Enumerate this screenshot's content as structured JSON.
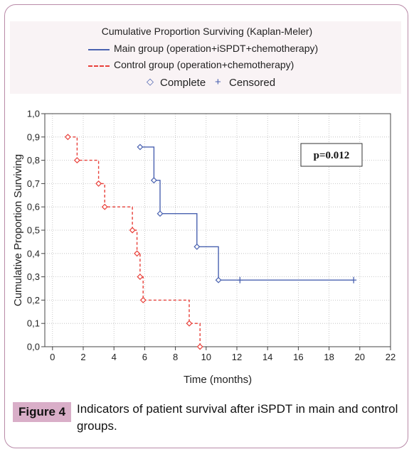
{
  "legend": {
    "title": "Cumulative Proportion Surviving (Kaplan-Meler)",
    "main_label": "Main group (operation+iSPDT+chemotherapy)",
    "control_label": "Control group (operation+chemotherapy)",
    "complete_label": "Complete",
    "censored_label": "Censored",
    "complete_symbol": "◇",
    "censored_symbol": "+"
  },
  "annotation": {
    "p_value": "p=0.012"
  },
  "caption": {
    "label": "Figure 4",
    "text": "Indicators of patient survival after iSPDT in main and control groups."
  },
  "colors": {
    "main": "#4a62b0",
    "control": "#e8403a",
    "grid": "#bbbbbb",
    "caption_label_bg": "#d9aec8",
    "frame": "#b98aa8"
  },
  "chart_data": {
    "type": "line",
    "title": "Cumulative Proportion Surviving (Kaplan-Meler)",
    "xlabel": "Time (months)",
    "ylabel": "Cumulative Proportion Surviving",
    "xlim": [
      -0.5,
      22
    ],
    "ylim": [
      0,
      1
    ],
    "xticks": [
      0,
      2,
      4,
      6,
      8,
      10,
      12,
      14,
      16,
      18,
      20,
      22
    ],
    "yticks": [
      0,
      0.1,
      0.2,
      0.3,
      0.4,
      0.5,
      0.6,
      0.7,
      0.8,
      0.9,
      1.0
    ],
    "xtick_labels": [
      "0",
      "2",
      "4",
      "6",
      "8",
      "10",
      "12",
      "14",
      "16",
      "18",
      "20",
      "22"
    ],
    "ytick_labels": [
      "0,0",
      "0,1",
      "0,2",
      "0,3",
      "0,4",
      "0,5",
      "0,6",
      "0,7",
      "0,8",
      "0,9",
      "1,0"
    ],
    "grid": true,
    "series": [
      {
        "name": "Main group (operation+iSPDT+chemotherapy)",
        "style": "solid",
        "color": "#4a62b0",
        "steps": [
          [
            5.7,
            0.857
          ],
          [
            6.6,
            0.857
          ],
          [
            6.6,
            0.714
          ],
          [
            7.0,
            0.714
          ],
          [
            7.0,
            0.571
          ],
          [
            9.4,
            0.571
          ],
          [
            9.4,
            0.429
          ],
          [
            10.8,
            0.429
          ],
          [
            10.8,
            0.286
          ],
          [
            19.6,
            0.286
          ]
        ],
        "complete": [
          [
            5.7,
            0.857
          ],
          [
            6.6,
            0.714
          ],
          [
            7.0,
            0.571
          ],
          [
            9.4,
            0.429
          ],
          [
            10.8,
            0.286
          ]
        ],
        "censored": [
          [
            12.2,
            0.286
          ],
          [
            19.6,
            0.286
          ]
        ]
      },
      {
        "name": "Control group (operation+chemotherapy)",
        "style": "dashed",
        "color": "#e8403a",
        "steps": [
          [
            1.0,
            0.9
          ],
          [
            1.6,
            0.9
          ],
          [
            1.6,
            0.8
          ],
          [
            3.0,
            0.8
          ],
          [
            3.0,
            0.7
          ],
          [
            3.4,
            0.7
          ],
          [
            3.4,
            0.6
          ],
          [
            5.2,
            0.6
          ],
          [
            5.2,
            0.5
          ],
          [
            5.5,
            0.5
          ],
          [
            5.5,
            0.4
          ],
          [
            5.7,
            0.4
          ],
          [
            5.7,
            0.3
          ],
          [
            5.9,
            0.3
          ],
          [
            5.9,
            0.2
          ],
          [
            8.9,
            0.2
          ],
          [
            8.9,
            0.1
          ],
          [
            9.6,
            0.1
          ],
          [
            9.6,
            0.0
          ]
        ],
        "complete": [
          [
            1.0,
            0.9
          ],
          [
            1.6,
            0.8
          ],
          [
            3.0,
            0.7
          ],
          [
            3.4,
            0.6
          ],
          [
            5.2,
            0.5
          ],
          [
            5.5,
            0.4
          ],
          [
            5.7,
            0.3
          ],
          [
            5.9,
            0.2
          ],
          [
            8.9,
            0.1
          ],
          [
            9.6,
            0.0
          ]
        ],
        "censored": []
      }
    ]
  }
}
